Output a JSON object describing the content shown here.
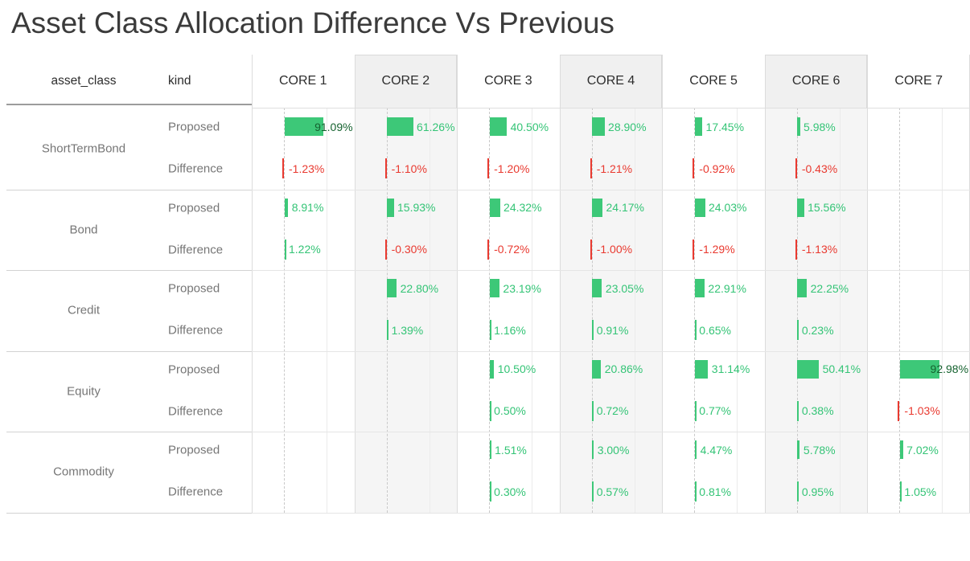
{
  "title": "Asset Class Allocation Difference Vs Previous",
  "table": {
    "row_header_label": "asset_class",
    "kind_header_label": "kind",
    "kinds": [
      "Proposed",
      "Difference"
    ]
  },
  "colors": {
    "positive_bar": "#3dc878",
    "positive_text": "#34c476",
    "negative_bar": "#e9392f",
    "negative_text": "#e9392f",
    "inside_label_text": "#15622f",
    "header_shading": "#f0f0f0",
    "body_shading": "#f5f5f5"
  },
  "chart_data": {
    "type": "bar",
    "title": "Asset Class Allocation Difference Vs Previous",
    "columns": [
      "CORE 1",
      "CORE 2",
      "CORE 3",
      "CORE 4",
      "CORE 5",
      "CORE 6",
      "CORE 7"
    ],
    "shaded_columns": [
      "CORE 2",
      "CORE 4",
      "CORE 6"
    ],
    "value_format": "0.00%",
    "axis": {
      "gridlines_percent": [
        0,
        100
      ],
      "zero_line_style": "dashed"
    },
    "legend": "none",
    "groups": [
      {
        "asset_class": "ShortTermBond",
        "proposed": [
          91.09,
          61.26,
          40.5,
          28.9,
          17.45,
          5.98,
          null
        ],
        "difference": [
          -1.23,
          -1.1,
          -1.2,
          -1.21,
          -0.92,
          -0.43,
          null
        ]
      },
      {
        "asset_class": "Bond",
        "proposed": [
          8.91,
          15.93,
          24.32,
          24.17,
          24.03,
          15.56,
          null
        ],
        "difference": [
          1.22,
          -0.3,
          -0.72,
          -1.0,
          -1.29,
          -1.13,
          null
        ]
      },
      {
        "asset_class": "Credit",
        "proposed": [
          null,
          22.8,
          23.19,
          23.05,
          22.91,
          22.25,
          null
        ],
        "difference": [
          null,
          1.39,
          1.16,
          0.91,
          0.65,
          0.23,
          null
        ]
      },
      {
        "asset_class": "Equity",
        "proposed": [
          null,
          null,
          10.5,
          20.86,
          31.14,
          50.41,
          92.98
        ],
        "difference": [
          null,
          null,
          0.5,
          0.72,
          0.77,
          0.38,
          -1.03
        ]
      },
      {
        "asset_class": "Commodity",
        "proposed": [
          null,
          null,
          1.51,
          3.0,
          4.47,
          5.78,
          7.02
        ],
        "difference": [
          null,
          null,
          0.3,
          0.57,
          0.81,
          0.95,
          1.05
        ]
      }
    ]
  }
}
